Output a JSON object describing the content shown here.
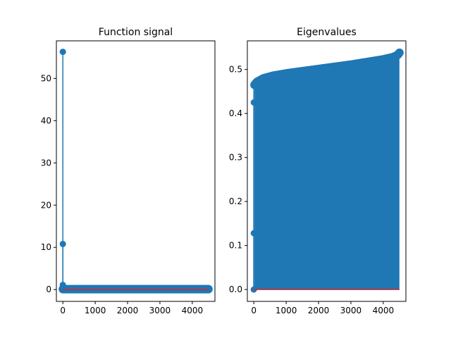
{
  "chart_data": [
    {
      "type": "stem",
      "title": "Function signal",
      "xlabel": "",
      "ylabel": "",
      "xlim": [
        -200,
        4700
      ],
      "ylim": [
        -2.8,
        58.9
      ],
      "xticks": [
        0,
        1000,
        2000,
        3000,
        4000
      ],
      "xtick_labels": [
        "0",
        "1000",
        "2000",
        "3000",
        "4000"
      ],
      "yticks": [
        0,
        10,
        20,
        30,
        40,
        50
      ],
      "ytick_labels": [
        "0",
        "10",
        "20",
        "30",
        "40",
        "50"
      ],
      "x_max": 4500,
      "grid": false,
      "points": [
        {
          "x": 0,
          "y": 56.3
        },
        {
          "x": 0,
          "y": 10.8
        },
        {
          "x": 0,
          "y": 1.1
        },
        {
          "x": 0,
          "y": 0.3
        }
      ],
      "rest_value": 0.1,
      "baseline": 0,
      "colors": {
        "stem": "#1f77b4",
        "marker": "#1f77b4",
        "baseline": "#d62728"
      }
    },
    {
      "type": "stem",
      "title": "Eigenvalues",
      "xlabel": "",
      "ylabel": "",
      "xlim": [
        -200,
        4700
      ],
      "ylim": [
        -0.027,
        0.565
      ],
      "xticks": [
        0,
        1000,
        2000,
        3000,
        4000
      ],
      "xtick_labels": [
        "0",
        "1000",
        "2000",
        "3000",
        "4000"
      ],
      "yticks": [
        0.0,
        0.1,
        0.2,
        0.3,
        0.4,
        0.5
      ],
      "ytick_labels": [
        "0.0",
        "0.1",
        "0.2",
        "0.3",
        "0.4",
        "0.5"
      ],
      "x_max": 4500,
      "grid": false,
      "points": [
        {
          "x": 0,
          "y": 0.0
        },
        {
          "x": 0,
          "y": 0.128
        },
        {
          "x": 0,
          "y": 0.425
        },
        {
          "x": 0,
          "y": 0.463
        }
      ],
      "curve": [
        {
          "x": 20,
          "y": 0.465
        },
        {
          "x": 100,
          "y": 0.472
        },
        {
          "x": 300,
          "y": 0.48
        },
        {
          "x": 600,
          "y": 0.486
        },
        {
          "x": 1000,
          "y": 0.491
        },
        {
          "x": 1500,
          "y": 0.496
        },
        {
          "x": 2000,
          "y": 0.501
        },
        {
          "x": 2500,
          "y": 0.506
        },
        {
          "x": 3000,
          "y": 0.511
        },
        {
          "x": 3500,
          "y": 0.517
        },
        {
          "x": 4000,
          "y": 0.523
        },
        {
          "x": 4300,
          "y": 0.528
        },
        {
          "x": 4450,
          "y": 0.533
        },
        {
          "x": 4500,
          "y": 0.538
        }
      ],
      "baseline": 0,
      "colors": {
        "stem": "#1f77b4",
        "marker": "#1f77b4",
        "baseline": "#d62728"
      }
    }
  ]
}
